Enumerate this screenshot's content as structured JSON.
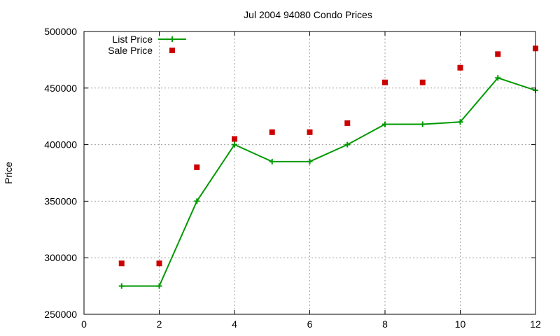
{
  "chart_data": {
    "type": "line",
    "title": "Jul 2004 94080 Condo Prices",
    "xlabel": "",
    "ylabel": "Price",
    "xlim": [
      0,
      12
    ],
    "ylim": [
      250000,
      500000
    ],
    "x_ticks": [
      "0",
      "2",
      "4",
      "6",
      "8",
      "10",
      "12"
    ],
    "y_ticks": [
      "250000",
      "300000",
      "350000",
      "400000",
      "450000",
      "500000"
    ],
    "grid": true,
    "legend_position": "top-left",
    "series": [
      {
        "name": "List Price",
        "style": "line+cross",
        "color": "#009900",
        "x": [
          1,
          2,
          3,
          4,
          5,
          6,
          7,
          8,
          9,
          10,
          11,
          12
        ],
        "y": [
          275000,
          275000,
          350000,
          400000,
          385000,
          385000,
          400000,
          418000,
          418000,
          420000,
          459000,
          448000
        ]
      },
      {
        "name": "Sale Price",
        "style": "square",
        "color": "#cc0000",
        "x": [
          1,
          2,
          3,
          4,
          5,
          6,
          7,
          8,
          9,
          10,
          11,
          12
        ],
        "y": [
          295000,
          295000,
          380000,
          405000,
          411000,
          411000,
          419000,
          455000,
          455000,
          468000,
          480000,
          485000
        ]
      }
    ]
  }
}
